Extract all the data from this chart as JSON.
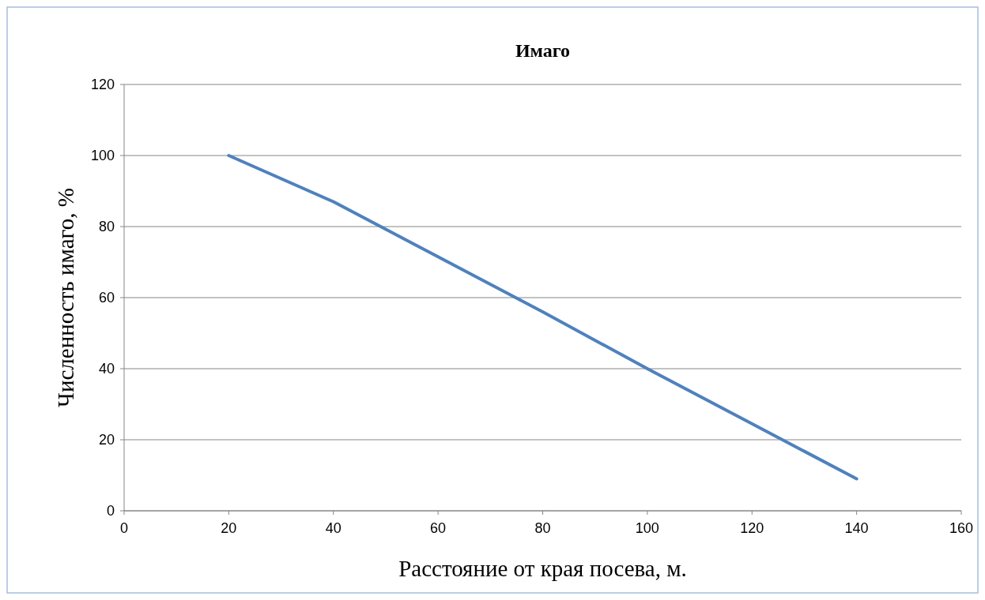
{
  "chart_data": {
    "type": "line",
    "title": "Имаго",
    "xlabel": "Расстояние от края посева, м.",
    "ylabel": "Численность имаго, %",
    "x": [
      20,
      40,
      60,
      80,
      100,
      120,
      140
    ],
    "series": [
      {
        "color": "#4f81bd",
        "values": [
          100,
          87,
          71.5,
          56,
          40,
          24.5,
          9
        ]
      }
    ],
    "xlim": [
      0,
      160
    ],
    "xticks": [
      0,
      20,
      40,
      60,
      80,
      100,
      120,
      140,
      160
    ],
    "ylim": [
      0,
      120
    ],
    "yticks": [
      0,
      20,
      40,
      60,
      80,
      100,
      120
    ],
    "grid": "y",
    "marker": "none",
    "line_style": "solid"
  }
}
